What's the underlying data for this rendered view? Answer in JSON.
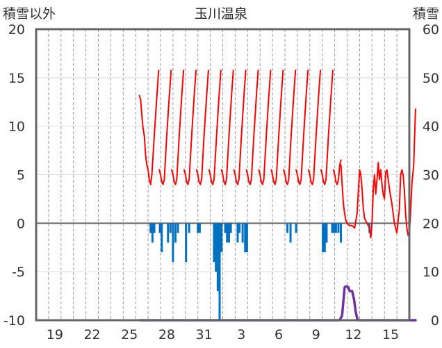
{
  "chart_data": {
    "type": "line",
    "title": "玉川温泉",
    "left_axis_label": "積雪以外",
    "right_axis_label": "積雪",
    "left_ylim": [
      -10,
      20
    ],
    "left_yticks": [
      20,
      15,
      10,
      5,
      0,
      -5,
      -10
    ],
    "right_ylim": [
      0,
      60
    ],
    "right_yticks": [
      60,
      50,
      40,
      30,
      20,
      10,
      0
    ],
    "xlim": [
      0,
      30
    ],
    "x_ticks": [
      {
        "x": 1.5,
        "label": "19"
      },
      {
        "x": 4.5,
        "label": "22"
      },
      {
        "x": 7.5,
        "label": "25"
      },
      {
        "x": 10.5,
        "label": "28"
      },
      {
        "x": 13.5,
        "label": "31"
      },
      {
        "x": 16.5,
        "label": "3"
      },
      {
        "x": 19.5,
        "label": "6"
      },
      {
        "x": 22.5,
        "label": "9"
      },
      {
        "x": 25.5,
        "label": "12"
      },
      {
        "x": 28.5,
        "label": "15"
      }
    ],
    "grid": "vertical dashed per day",
    "colors": {
      "snow_depth": "#ff0000",
      "precipitation": "#0070c0",
      "snowfall": "#7030a0",
      "zero_line": "#666666"
    },
    "series": [
      {
        "name": "",
        "axis": "right",
        "color": "#ff0000",
        "segments": [
          [
            [
              8.3,
              46.3
            ],
            [
              8.4,
              45.5
            ],
            [
              8.5,
              42
            ],
            [
              8.6,
              39.5
            ],
            [
              8.7,
              38
            ],
            [
              8.8,
              34
            ],
            [
              8.9,
              32
            ],
            [
              9.0,
              31
            ],
            [
              9.1,
              29
            ],
            [
              9.2,
              28
            ],
            [
              9.3,
              30
            ],
            [
              9.5,
              38
            ],
            [
              9.7,
              46
            ],
            [
              9.85,
              51.5
            ]
          ],
          [
            [
              9.9,
              31
            ],
            [
              10.0,
              30
            ],
            [
              10.1,
              28.5
            ],
            [
              10.2,
              28
            ],
            [
              10.3,
              29
            ],
            [
              10.5,
              38
            ],
            [
              10.7,
              46
            ],
            [
              10.85,
              51.5
            ]
          ],
          [
            [
              10.9,
              31
            ],
            [
              11.0,
              30
            ],
            [
              11.1,
              28.5
            ],
            [
              11.2,
              28
            ],
            [
              11.3,
              29
            ],
            [
              11.5,
              38
            ],
            [
              11.7,
              46
            ],
            [
              11.85,
              51.5
            ]
          ],
          [
            [
              11.9,
              31
            ],
            [
              12.0,
              30
            ],
            [
              12.1,
              28.5
            ],
            [
              12.2,
              28
            ],
            [
              12.3,
              29
            ],
            [
              12.5,
              38
            ],
            [
              12.7,
              46
            ],
            [
              12.85,
              51.5
            ]
          ],
          [
            [
              12.9,
              31
            ],
            [
              13.0,
              30
            ],
            [
              13.1,
              28.5
            ],
            [
              13.2,
              28
            ],
            [
              13.3,
              29
            ],
            [
              13.5,
              38
            ],
            [
              13.7,
              46
            ],
            [
              13.85,
              51.5
            ]
          ],
          [
            [
              13.9,
              31
            ],
            [
              14.0,
              30
            ],
            [
              14.1,
              28.5
            ],
            [
              14.2,
              28
            ],
            [
              14.3,
              29
            ],
            [
              14.5,
              38
            ],
            [
              14.7,
              46
            ],
            [
              14.85,
              51.5
            ]
          ],
          [
            [
              14.9,
              31
            ],
            [
              15.0,
              30
            ],
            [
              15.1,
              28.5
            ],
            [
              15.2,
              28
            ],
            [
              15.3,
              29
            ],
            [
              15.5,
              38
            ],
            [
              15.7,
              46
            ],
            [
              15.85,
              51.5
            ]
          ],
          [
            [
              15.9,
              31
            ],
            [
              16.0,
              30
            ],
            [
              16.1,
              28.5
            ],
            [
              16.2,
              28
            ],
            [
              16.3,
              29
            ],
            [
              16.5,
              38
            ],
            [
              16.7,
              46
            ],
            [
              16.85,
              51.5
            ]
          ],
          [
            [
              16.9,
              31
            ],
            [
              17.0,
              30
            ],
            [
              17.1,
              28.5
            ],
            [
              17.2,
              28
            ],
            [
              17.3,
              29
            ],
            [
              17.5,
              38
            ],
            [
              17.7,
              46
            ],
            [
              17.85,
              51.5
            ]
          ],
          [
            [
              17.9,
              31
            ],
            [
              18.0,
              30
            ],
            [
              18.1,
              28.5
            ],
            [
              18.2,
              28
            ],
            [
              18.3,
              29
            ],
            [
              18.5,
              38
            ],
            [
              18.7,
              46
            ],
            [
              18.85,
              51.5
            ]
          ],
          [
            [
              18.9,
              31
            ],
            [
              19.0,
              30
            ],
            [
              19.1,
              28.5
            ],
            [
              19.2,
              28
            ],
            [
              19.3,
              29
            ],
            [
              19.5,
              38
            ],
            [
              19.7,
              46
            ],
            [
              19.85,
              51.5
            ]
          ],
          [
            [
              19.9,
              31
            ],
            [
              20.0,
              30
            ],
            [
              20.1,
              28.5
            ],
            [
              20.2,
              28
            ],
            [
              20.3,
              29
            ],
            [
              20.5,
              38
            ],
            [
              20.7,
              46
            ],
            [
              20.85,
              51.5
            ]
          ],
          [
            [
              20.9,
              31
            ],
            [
              21.0,
              30
            ],
            [
              21.1,
              28.5
            ],
            [
              21.2,
              28
            ],
            [
              21.3,
              29
            ],
            [
              21.5,
              38
            ],
            [
              21.7,
              46
            ],
            [
              21.85,
              51.5
            ]
          ],
          [
            [
              21.9,
              31
            ],
            [
              22.0,
              30
            ],
            [
              22.1,
              28.5
            ],
            [
              22.2,
              28
            ],
            [
              22.3,
              29
            ],
            [
              22.5,
              38
            ],
            [
              22.7,
              46
            ],
            [
              22.85,
              51.5
            ]
          ],
          [
            [
              22.9,
              31
            ],
            [
              23.0,
              30
            ],
            [
              23.1,
              28.5
            ],
            [
              23.2,
              28
            ],
            [
              23.3,
              29
            ],
            [
              23.5,
              38
            ],
            [
              23.7,
              46
            ],
            [
              23.85,
              51.5
            ]
          ],
          [
            [
              23.9,
              31
            ],
            [
              24.0,
              30
            ],
            [
              24.1,
              28.5
            ],
            [
              24.2,
              28
            ],
            [
              24.3,
              29
            ],
            [
              24.4,
              32
            ],
            [
              24.5,
              33
            ]
          ],
          [
            [
              24.5,
              32
            ],
            [
              24.6,
              28
            ],
            [
              24.7,
              24
            ],
            [
              24.8,
              22
            ],
            [
              24.9,
              20.5
            ],
            [
              25.0,
              20
            ],
            [
              25.2,
              19.5
            ],
            [
              25.4,
              19.5
            ],
            [
              25.6,
              19
            ],
            [
              25.8,
              22
            ],
            [
              26.0,
              31
            ],
            [
              26.1,
              30
            ],
            [
              26.2,
              27
            ],
            [
              26.3,
              23
            ],
            [
              26.4,
              21
            ],
            [
              26.6,
              20
            ],
            [
              26.8,
              19
            ],
            [
              26.9,
              17
            ],
            [
              27.0,
              20
            ],
            [
              27.1,
              27
            ],
            [
              27.2,
              30
            ],
            [
              27.3,
              26
            ],
            [
              27.4,
              29
            ],
            [
              27.5,
              32.5
            ],
            [
              27.6,
              29
            ],
            [
              27.7,
              31
            ],
            [
              27.8,
              28
            ],
            [
              27.9,
              26
            ],
            [
              28.0,
              25
            ],
            [
              28.1,
              30.5
            ],
            [
              28.2,
              31
            ],
            [
              28.3,
              29
            ],
            [
              28.4,
              27
            ],
            [
              28.6,
              24
            ],
            [
              28.8,
              20
            ],
            [
              29.0,
              18
            ],
            [
              29.2,
              23
            ],
            [
              29.3,
              30
            ],
            [
              29.4,
              31
            ],
            [
              29.5,
              30
            ],
            [
              29.6,
              27
            ],
            [
              29.7,
              22
            ],
            [
              29.8,
              19
            ],
            [
              29.9,
              17.5
            ],
            [
              30.0,
              18
            ],
            [
              30.1,
              22
            ],
            [
              30.2,
              28
            ],
            [
              30.35,
              32
            ],
            [
              30.5,
              43.5
            ]
          ]
        ]
      },
      {
        "name": "",
        "axis": "left",
        "color": "#0070c0",
        "type": "bar",
        "bars": [
          {
            "x": 9.2,
            "v": -1
          },
          {
            "x": 9.35,
            "v": -2
          },
          {
            "x": 9.5,
            "v": -1
          },
          {
            "x": 9.95,
            "v": -1
          },
          {
            "x": 10.1,
            "v": -3
          },
          {
            "x": 10.6,
            "v": -2
          },
          {
            "x": 10.8,
            "v": -1
          },
          {
            "x": 11.0,
            "v": -4
          },
          {
            "x": 11.2,
            "v": -2
          },
          {
            "x": 11.4,
            "v": -1
          },
          {
            "x": 12.05,
            "v": -4
          },
          {
            "x": 12.3,
            "v": -1
          },
          {
            "x": 13.0,
            "v": -1
          },
          {
            "x": 13.15,
            "v": -1
          },
          {
            "x": 14.3,
            "v": -4
          },
          {
            "x": 14.45,
            "v": -5
          },
          {
            "x": 14.6,
            "v": -7
          },
          {
            "x": 14.75,
            "v": -10
          },
          {
            "x": 14.9,
            "v": -3
          },
          {
            "x": 15.2,
            "v": -1
          },
          {
            "x": 15.35,
            "v": -2
          },
          {
            "x": 15.5,
            "v": -2
          },
          {
            "x": 15.65,
            "v": -1
          },
          {
            "x": 16.2,
            "v": -2
          },
          {
            "x": 16.35,
            "v": -1
          },
          {
            "x": 16.6,
            "v": -2
          },
          {
            "x": 16.8,
            "v": -3
          },
          {
            "x": 16.95,
            "v": -3
          },
          {
            "x": 20.2,
            "v": -1
          },
          {
            "x": 20.45,
            "v": -2
          },
          {
            "x": 20.9,
            "v": -1
          },
          {
            "x": 23.05,
            "v": -3
          },
          {
            "x": 23.2,
            "v": -3
          },
          {
            "x": 23.35,
            "v": -2
          },
          {
            "x": 23.8,
            "v": -1
          },
          {
            "x": 23.95,
            "v": -1
          },
          {
            "x": 24.1,
            "v": -1
          },
          {
            "x": 24.3,
            "v": -1
          },
          {
            "x": 24.5,
            "v": -2
          },
          {
            "x": 26.8,
            "v": -1
          }
        ]
      },
      {
        "name": "",
        "axis": "left",
        "color": "#7030a0",
        "segments": [
          [
            [
              8.3,
              -10
            ],
            [
              24.4,
              -10
            ],
            [
              24.6,
              -9.5
            ],
            [
              24.8,
              -6.6
            ],
            [
              24.95,
              -6.5
            ],
            [
              25.1,
              -6.6
            ],
            [
              25.2,
              -7
            ],
            [
              25.4,
              -7
            ],
            [
              25.55,
              -7.8
            ],
            [
              25.7,
              -9.2
            ],
            [
              25.85,
              -10
            ],
            [
              30.5,
              -10
            ]
          ]
        ]
      }
    ]
  }
}
